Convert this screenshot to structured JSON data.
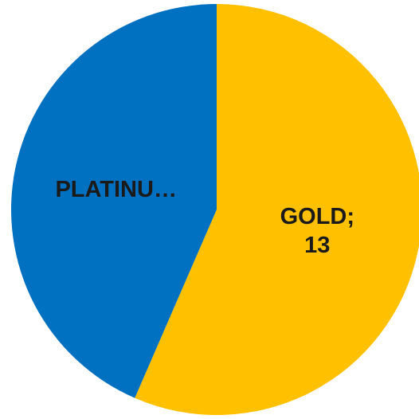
{
  "chart_data": {
    "type": "pie",
    "start_angle_deg": 0,
    "direction": "clockwise",
    "slices": [
      {
        "name": "GOLD",
        "value": 13,
        "color": "#FFC000",
        "label_lines": [
          "GOLD;",
          "13"
        ]
      },
      {
        "name": "PLATINUM",
        "value": 10,
        "color": "#0070C0",
        "label_lines": [
          "PLATINU…"
        ]
      }
    ],
    "legend": "none"
  }
}
